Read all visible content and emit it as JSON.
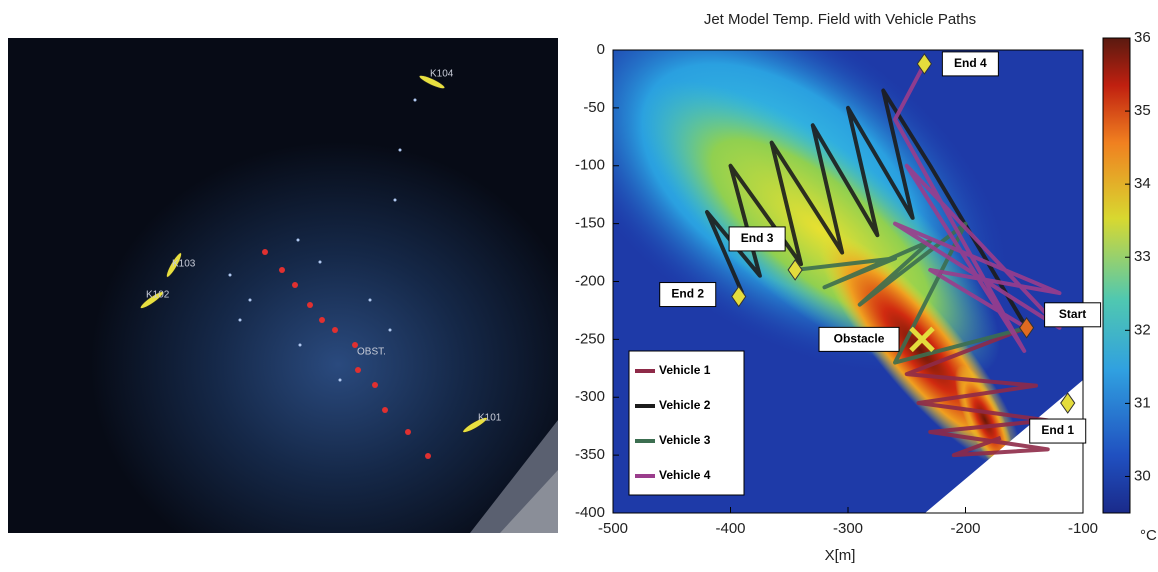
{
  "photo": {
    "labels": [
      "K104",
      "K103",
      "K102",
      "K101",
      "OBST."
    ]
  },
  "chart_data": {
    "type": "line",
    "title": "Jet Model Temp. Field with Vehicle Paths",
    "xlabel": "X[m]",
    "xlim": [
      -500,
      -100
    ],
    "xticks": [
      -500,
      -400,
      -300,
      -200,
      -100
    ],
    "ylim": [
      -400,
      0
    ],
    "yticks": [
      0,
      -50,
      -100,
      -150,
      -200,
      -250,
      -300,
      -350,
      -400
    ],
    "legend": "lower left",
    "series": [
      {
        "name": "Vehicle 1",
        "color": "#8e2a48",
        "x": [
          -148,
          -250,
          -140,
          -240,
          -130,
          -230,
          -130,
          -210,
          -170
        ],
        "values": [
          -240,
          -280,
          -290,
          -305,
          -320,
          -330,
          -345,
          -350,
          -335
        ]
      },
      {
        "name": "Vehicle 2",
        "color": "#1c1c1c",
        "x": [
          -148,
          -230,
          -270,
          -245,
          -300,
          -275,
          -330,
          -305,
          -365,
          -340,
          -400,
          -375,
          -420,
          -390
        ],
        "values": [
          -240,
          -100,
          -35,
          -145,
          -50,
          -160,
          -65,
          -175,
          -80,
          -185,
          -100,
          -195,
          -140,
          -210
        ]
      },
      {
        "name": "Vehicle 3",
        "color": "#3c6e50",
        "x": [
          -148,
          -260,
          -200,
          -290,
          -230,
          -320,
          -260,
          -345
        ],
        "values": [
          -240,
          -270,
          -150,
          -220,
          -165,
          -205,
          -180,
          -190
        ]
      },
      {
        "name": "Vehicle 4",
        "color": "#9a3d8c",
        "x": [
          -148,
          -230,
          -120,
          -260,
          -120,
          -250,
          -150,
          -260,
          -235
        ],
        "values": [
          -240,
          -190,
          -210,
          -150,
          -240,
          -100,
          -260,
          -60,
          -12
        ]
      }
    ],
    "annotations": [
      {
        "text": "End 4",
        "x": -235,
        "y": -12,
        "marker": "diamond",
        "color": "#e4dc3c"
      },
      {
        "text": "End 3",
        "x": -345,
        "y": -190,
        "marker": "diamond",
        "color": "#e4dc3c"
      },
      {
        "text": "End 2",
        "x": -393,
        "y": -213,
        "marker": "diamond",
        "color": "#e4dc3c"
      },
      {
        "text": "Start",
        "x": -148,
        "y": -240,
        "marker": "diamond",
        "color": "#e06a20"
      },
      {
        "text": "Obstacle",
        "x": -237,
        "y": -250,
        "marker": "x",
        "color": "#e4dc3c"
      },
      {
        "text": "End 1",
        "x": -113,
        "y": -305,
        "marker": "diamond",
        "color": "#e4dc3c"
      }
    ],
    "colorbar": {
      "label": "°C",
      "clim": [
        29.5,
        36
      ],
      "ticks": [
        30,
        31,
        32,
        33,
        34,
        35,
        36
      ]
    }
  }
}
